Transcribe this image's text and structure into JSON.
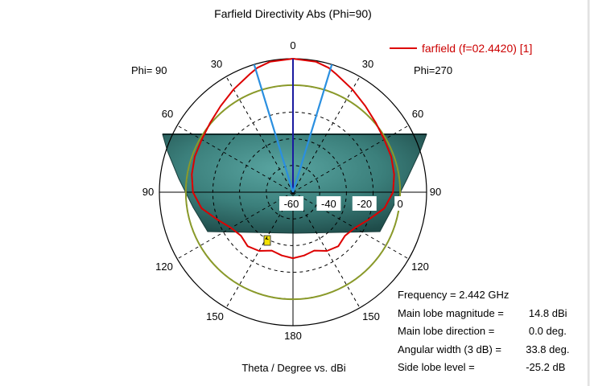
{
  "chart_data": {
    "type": "polar",
    "title": "Farfield Directivity Abs (Phi=90)",
    "xlabel": "Theta / Degree vs. dBi",
    "phi_left_label": "Phi= 90",
    "phi_right_label": "Phi=270",
    "radial_ticks": [
      "-60",
      "-40",
      "-20",
      "0"
    ],
    "radial_range_dbi": [
      -60,
      14.8
    ],
    "angle_labels": {
      "top": "0",
      "upper_left": "30",
      "upper_right": "30",
      "mid_upper_left": "60",
      "mid_upper_right": "60",
      "left": "90",
      "right": "90",
      "mid_lower_left": "120",
      "mid_lower_right": "120",
      "lower_left": "150",
      "lower_right": "150",
      "bottom": "180"
    },
    "legend": {
      "label": "farfield (f=02.4420) [1]",
      "color": "#dd0000",
      "position": "top-right"
    },
    "series": [
      {
        "name": "farfield (f=02.4420) [1]",
        "color": "#dd0000",
        "theta_deg": [
          0,
          10,
          16,
          20,
          30,
          40,
          50,
          60,
          70,
          80,
          90,
          100,
          110,
          120,
          130,
          140,
          150,
          160,
          170,
          180
        ],
        "directivity_dbi": [
          14.8,
          14.2,
          12.5,
          10.5,
          6.5,
          3.0,
          0.5,
          -1.0,
          -1.5,
          -2.5,
          -4.0,
          -8.0,
          -15.0,
          -20.0,
          -22.0,
          -20.5,
          -22.0,
          -25.2,
          -24.0,
          -23.0
        ]
      }
    ],
    "reference_ring": {
      "color": "#8a9a2a",
      "value_dbi": 0
    },
    "main_lobe_color": "#2a8fe0",
    "ground_plane_color": "#2f6b68"
  },
  "info": {
    "frequency_label": "Frequency = 2.442 GHz",
    "magnitude_key": "Main lobe magnitude =",
    "magnitude_value": "   14.8 dBi",
    "direction_key": "Main lobe direction =",
    "direction_value": "   0.0 deg.",
    "width_key": "Angular width (3 dB) =",
    "width_value": "  33.8 deg.",
    "sidelobe_key": "Side lobe level =",
    "sidelobe_value": "  -25.2 dB"
  }
}
